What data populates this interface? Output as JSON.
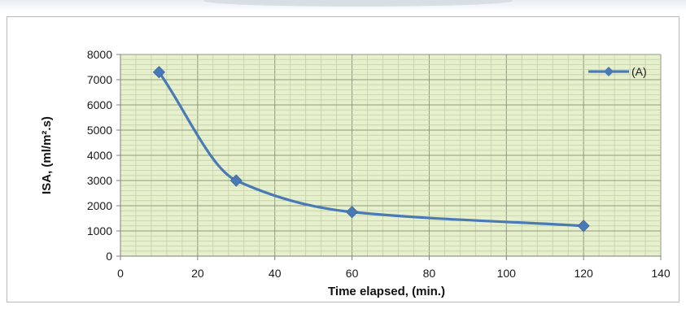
{
  "chart_data": {
    "type": "line",
    "title": "",
    "xlabel": "Time elapsed, (min.)",
    "ylabel": "ISA, (ml/m².s)",
    "xlim": [
      0,
      140
    ],
    "ylim": [
      0,
      8000
    ],
    "xticks": [
      0,
      20,
      40,
      60,
      80,
      100,
      120,
      140
    ],
    "yticks": [
      0,
      1000,
      2000,
      3000,
      4000,
      5000,
      6000,
      7000,
      8000
    ],
    "grid": true,
    "legend_position": "top-right",
    "series": [
      {
        "name": "(A)",
        "x": [
          10,
          30,
          60,
          120
        ],
        "y": [
          7300,
          3000,
          1750,
          1200
        ],
        "smooth": true,
        "marker": "diamond"
      }
    ],
    "colors": {
      "line": "#4a7ab6",
      "marker": "#4a7ab6",
      "plot_background": "#e7f0cc",
      "major_grid": "#8f9a7d",
      "minor_grid": "#c4d0a8"
    }
  }
}
